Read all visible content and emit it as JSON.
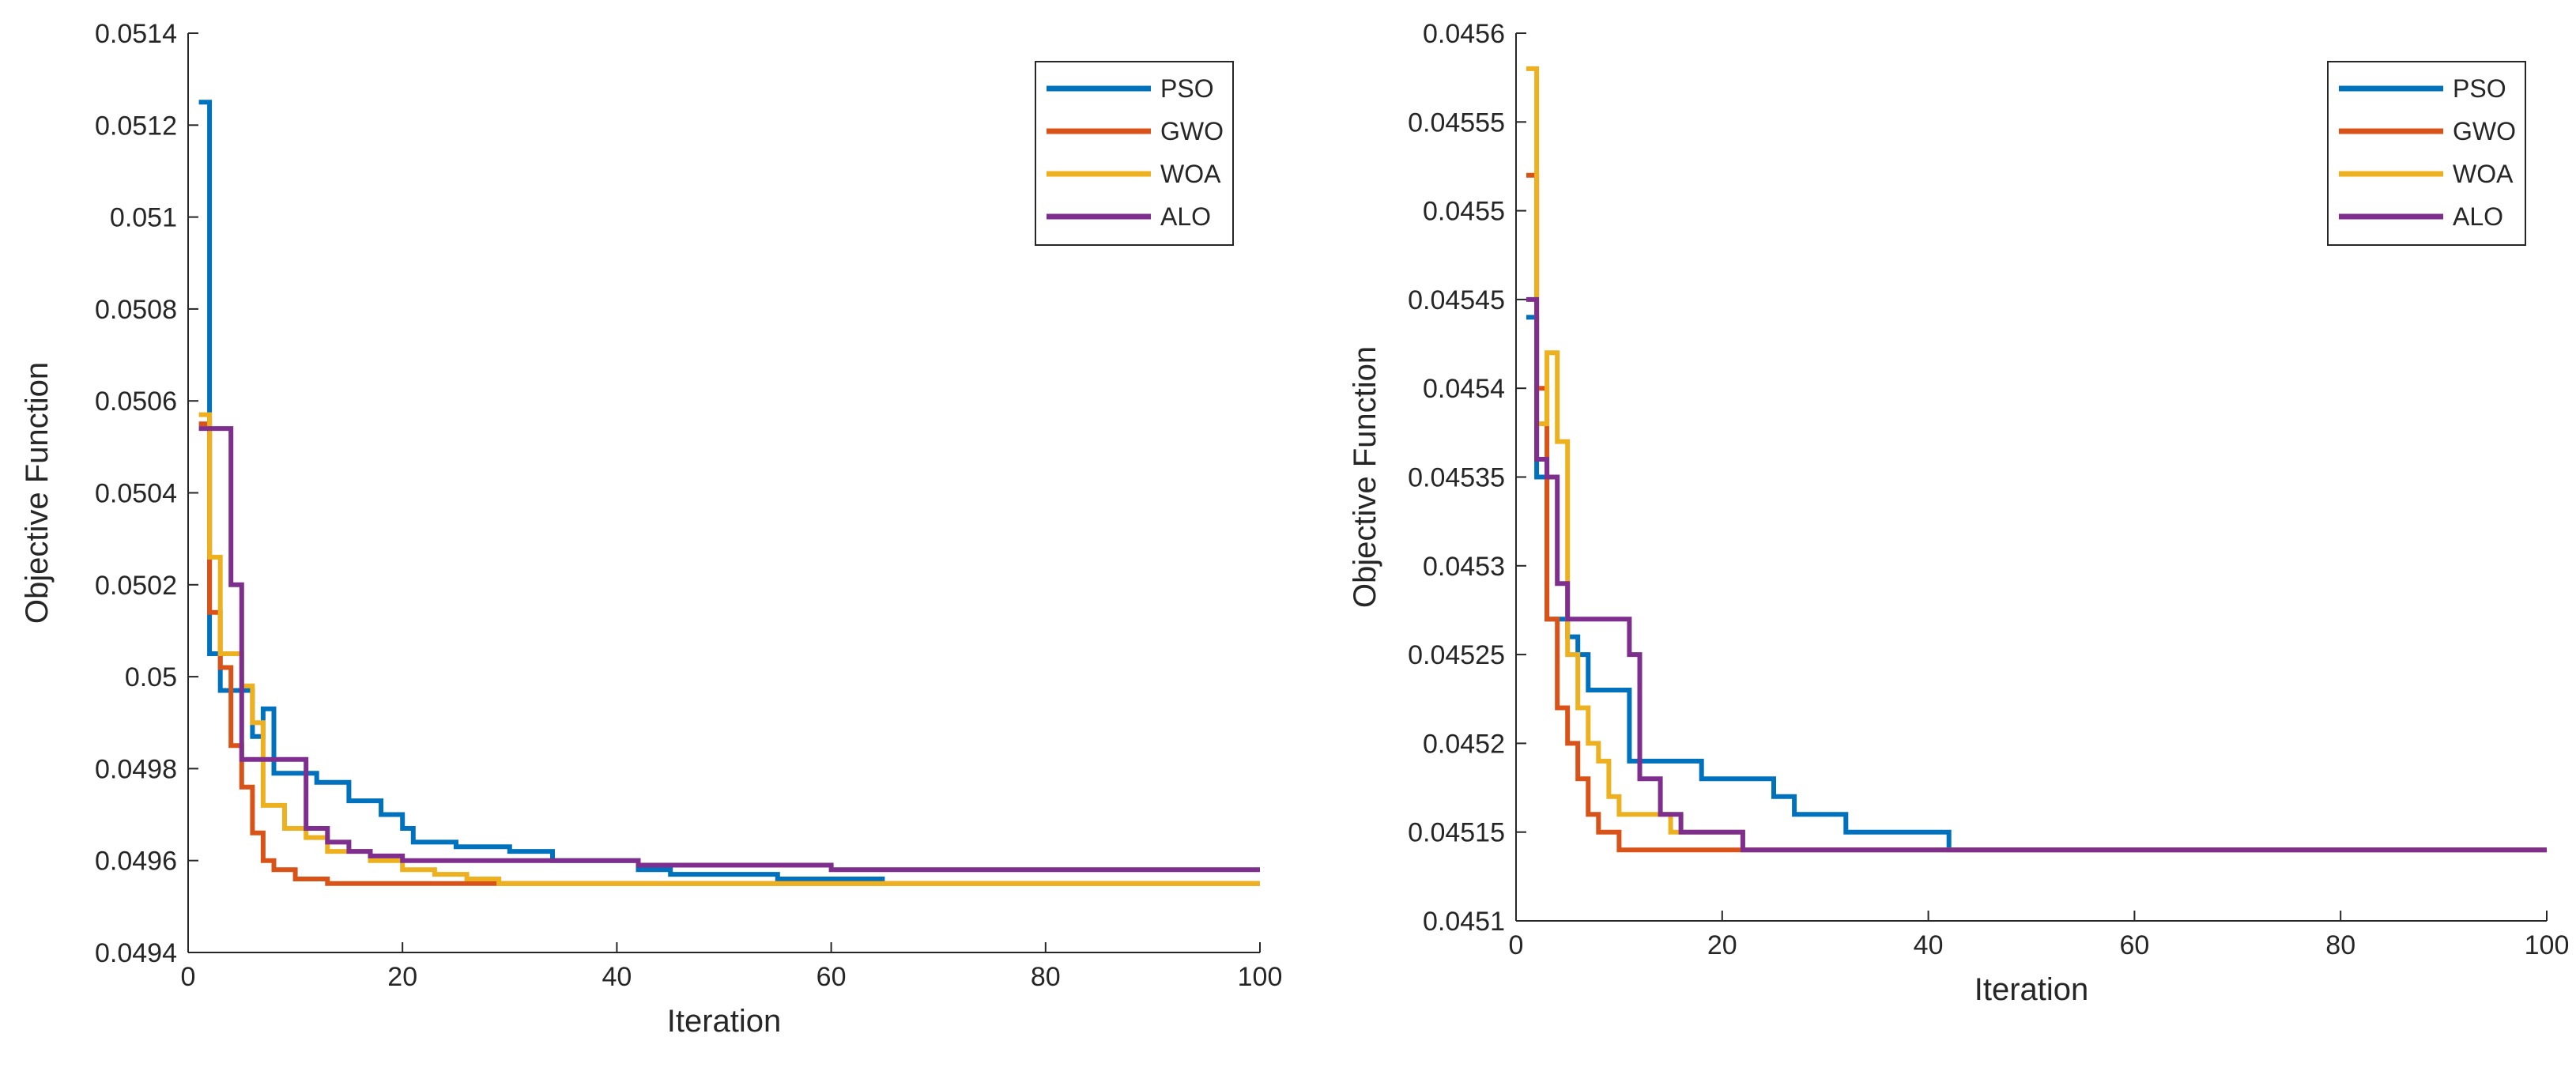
{
  "chart_data": [
    {
      "type": "line",
      "title": "",
      "xlabel": "Iteration",
      "ylabel": "Objective Function",
      "xlim": [
        0,
        100
      ],
      "ylim": [
        0.0494,
        0.0514
      ],
      "xticks": [
        0,
        20,
        40,
        60,
        80,
        100
      ],
      "xtick_labels": [
        "0",
        "20",
        "40",
        "60",
        "80",
        "100"
      ],
      "yticks": [
        0.0494,
        0.0496,
        0.0498,
        0.05,
        0.0502,
        0.0504,
        0.0506,
        0.0508,
        0.051,
        0.0512,
        0.0514
      ],
      "ytick_labels": [
        "0.0494",
        "0.0496",
        "0.0498",
        "0.05",
        "0.0502",
        "0.0504",
        "0.0506",
        "0.0508",
        "0.051",
        "0.0512",
        "0.0514"
      ],
      "grid": false,
      "legend_position": "top-right",
      "series": [
        {
          "name": "PSO",
          "color": "#0072BD",
          "points": [
            [
              1,
              0.05125
            ],
            [
              2,
              0.05005
            ],
            [
              3,
              0.04997
            ],
            [
              5,
              0.04997
            ],
            [
              6,
              0.04987
            ],
            [
              7,
              0.04993
            ],
            [
              8,
              0.04979
            ],
            [
              12,
              0.04977
            ],
            [
              15,
              0.04973
            ],
            [
              18,
              0.0497
            ],
            [
              20,
              0.04967
            ],
            [
              21,
              0.04964
            ],
            [
              25,
              0.04963
            ],
            [
              30,
              0.04962
            ],
            [
              34,
              0.0496
            ],
            [
              42,
              0.04958
            ],
            [
              45,
              0.04957
            ],
            [
              55,
              0.04956
            ],
            [
              65,
              0.04956
            ]
          ]
        },
        {
          "name": "GWO",
          "color": "#D95319",
          "points": [
            [
              1,
              0.05055
            ],
            [
              2,
              0.05014
            ],
            [
              3,
              0.05002
            ],
            [
              4,
              0.04985
            ],
            [
              5,
              0.04976
            ],
            [
              6,
              0.04966
            ],
            [
              7,
              0.0496
            ],
            [
              8,
              0.04958
            ],
            [
              10,
              0.04956
            ],
            [
              13,
              0.04955
            ],
            [
              15,
              0.04955
            ],
            [
              20,
              0.04955
            ],
            [
              28,
              0.04955
            ],
            [
              100,
              0.04955
            ]
          ]
        },
        {
          "name": "WOA",
          "color": "#EDB120",
          "points": [
            [
              1,
              0.05057
            ],
            [
              2,
              0.05026
            ],
            [
              3,
              0.05005
            ],
            [
              5,
              0.04998
            ],
            [
              6,
              0.0499
            ],
            [
              7,
              0.04972
            ],
            [
              9,
              0.04967
            ],
            [
              11,
              0.04965
            ],
            [
              13,
              0.04962
            ],
            [
              15,
              0.04962
            ],
            [
              17,
              0.0496
            ],
            [
              20,
              0.04958
            ],
            [
              23,
              0.04957
            ],
            [
              26,
              0.04956
            ],
            [
              29,
              0.04955
            ],
            [
              100,
              0.04955
            ]
          ]
        },
        {
          "name": "ALO",
          "color": "#7E2F8E",
          "points": [
            [
              1,
              0.05054
            ],
            [
              3,
              0.05054
            ],
            [
              4,
              0.0502
            ],
            [
              5,
              0.04982
            ],
            [
              10,
              0.04982
            ],
            [
              11,
              0.04967
            ],
            [
              13,
              0.04964
            ],
            [
              15,
              0.04962
            ],
            [
              17,
              0.04961
            ],
            [
              20,
              0.0496
            ],
            [
              35,
              0.0496
            ],
            [
              42,
              0.04959
            ],
            [
              55,
              0.04959
            ],
            [
              60,
              0.04958
            ],
            [
              100,
              0.04958
            ]
          ]
        }
      ]
    },
    {
      "type": "line",
      "title": "",
      "xlabel": "Iteration",
      "ylabel": "Objective Function",
      "xlim": [
        0,
        100
      ],
      "ylim": [
        0.0451,
        0.0456
      ],
      "xticks": [
        0,
        20,
        40,
        60,
        80,
        100
      ],
      "xtick_labels": [
        "0",
        "20",
        "40",
        "60",
        "80",
        "100"
      ],
      "yticks": [
        0.0451,
        0.04515,
        0.0452,
        0.04525,
        0.0453,
        0.04535,
        0.0454,
        0.04545,
        0.0455,
        0.04555,
        0.0456
      ],
      "ytick_labels": [
        "0.0451",
        "0.04515",
        "0.0452",
        "0.04525",
        "0.0453",
        "0.04535",
        "0.0454",
        "0.04545",
        "0.0455",
        "0.04555",
        "0.0456"
      ],
      "grid": false,
      "legend_position": "top-right",
      "series": [
        {
          "name": "PSO",
          "color": "#0072BD",
          "points": [
            [
              1,
              0.04544
            ],
            [
              2,
              0.04535
            ],
            [
              3,
              0.04527
            ],
            [
              5,
              0.04526
            ],
            [
              6,
              0.04525
            ],
            [
              7,
              0.04523
            ],
            [
              10,
              0.04523
            ],
            [
              11,
              0.04519
            ],
            [
              15,
              0.04519
            ],
            [
              18,
              0.04518
            ],
            [
              20,
              0.04518
            ],
            [
              21,
              0.04518
            ],
            [
              25,
              0.04517
            ],
            [
              27,
              0.04516
            ],
            [
              30,
              0.04516
            ],
            [
              32,
              0.04515
            ],
            [
              38,
              0.04515
            ],
            [
              42,
              0.04514
            ],
            [
              50,
              0.04514
            ],
            [
              58,
              0.04514
            ],
            [
              100,
              0.04514
            ]
          ]
        },
        {
          "name": "GWO",
          "color": "#D95319",
          "points": [
            [
              1,
              0.04552
            ],
            [
              2,
              0.0454
            ],
            [
              3,
              0.04527
            ],
            [
              4,
              0.04522
            ],
            [
              5,
              0.0452
            ],
            [
              6,
              0.04518
            ],
            [
              7,
              0.04516
            ],
            [
              8,
              0.04515
            ],
            [
              10,
              0.04514
            ],
            [
              14,
              0.04514
            ],
            [
              20,
              0.04514
            ],
            [
              100,
              0.04514
            ]
          ]
        },
        {
          "name": "WOA",
          "color": "#EDB120",
          "points": [
            [
              1,
              0.04558
            ],
            [
              2,
              0.04538
            ],
            [
              3,
              0.04542
            ],
            [
              4,
              0.04537
            ],
            [
              5,
              0.04525
            ],
            [
              6,
              0.04522
            ],
            [
              7,
              0.0452
            ],
            [
              8,
              0.04519
            ],
            [
              9,
              0.04517
            ],
            [
              10,
              0.04516
            ],
            [
              13,
              0.04516
            ],
            [
              15,
              0.04515
            ],
            [
              18,
              0.04515
            ],
            [
              22,
              0.04514
            ],
            [
              30,
              0.04514
            ],
            [
              100,
              0.04514
            ]
          ]
        },
        {
          "name": "ALO",
          "color": "#7E2F8E",
          "points": [
            [
              1,
              0.04545
            ],
            [
              2,
              0.04536
            ],
            [
              3,
              0.04535
            ],
            [
              4,
              0.04529
            ],
            [
              5,
              0.04527
            ],
            [
              10,
              0.04527
            ],
            [
              11,
              0.04525
            ],
            [
              12,
              0.04518
            ],
            [
              14,
              0.04516
            ],
            [
              16,
              0.04515
            ],
            [
              18,
              0.04515
            ],
            [
              20,
              0.04515
            ],
            [
              22,
              0.04514
            ],
            [
              35,
              0.04514
            ],
            [
              45,
              0.04514
            ],
            [
              100,
              0.04514
            ]
          ]
        }
      ]
    }
  ]
}
